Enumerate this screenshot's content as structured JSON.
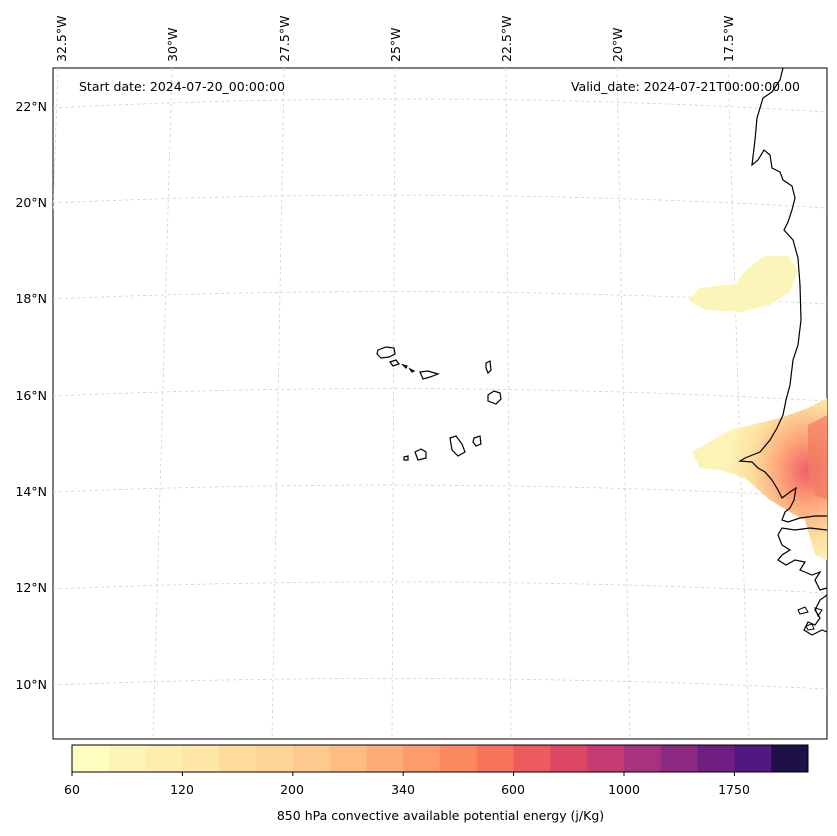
{
  "map": {
    "start_date": "Start date: 2024-07-20_00:00:00",
    "valid_date": "Valid_date: 2024-07-21T00:00:00.00",
    "lon_labels": [
      "32.5°W",
      "30°W",
      "27.5°W",
      "25°W",
      "22.5°W",
      "20°W",
      "17.5°W"
    ],
    "lat_labels": [
      "22°N",
      "20°N",
      "18°N",
      "16°N",
      "14°N",
      "12°N",
      "10°N"
    ],
    "gridlines": true
  },
  "colorbar": {
    "title": "850 hPa convective available potential energy (j/Kg)",
    "tick_labels": [
      "60",
      "120",
      "200",
      "340",
      "600",
      "1000",
      "1750"
    ],
    "colors": [
      "#fcfdbf",
      "#fcf4b6",
      "#fdedae",
      "#fde6a6",
      "#fedd9c",
      "#fed497",
      "#fec98e",
      "#febc83",
      "#fdab78",
      "#fd9b6d",
      "#fc8860",
      "#f7735c",
      "#ec5c5e",
      "#dc4764",
      "#c43c71",
      "#a8327d",
      "#8c2980",
      "#6f1f81",
      "#531781",
      "#1d1147"
    ]
  },
  "legend_colors": {
    "coast": "#000000",
    "grid": "#cccccc",
    "cape_low": "#fcf4b6",
    "cape_high": "#f0606a"
  }
}
